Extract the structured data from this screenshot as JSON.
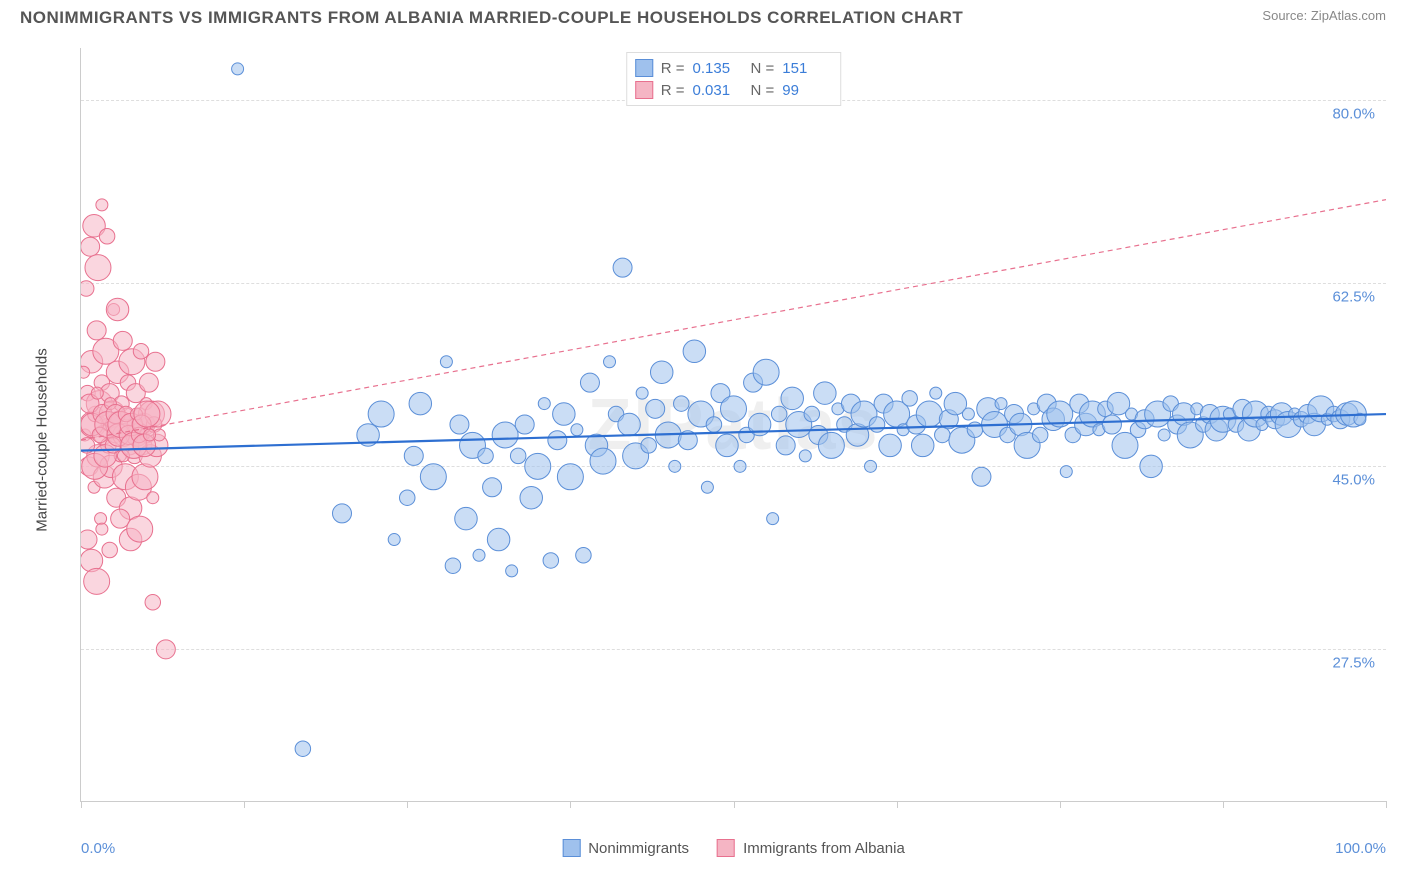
{
  "title": "NONIMMIGRANTS VS IMMIGRANTS FROM ALBANIA MARRIED-COUPLE HOUSEHOLDS CORRELATION CHART",
  "source_label": "Source:",
  "source_name": "ZipAtlas.com",
  "watermark": "ZIPatlas",
  "ylabel": "Married-couple Households",
  "chart": {
    "type": "scatter",
    "xlim": [
      0,
      100
    ],
    "ylim": [
      13,
      85
    ],
    "x_ticks": [
      0,
      12.5,
      25,
      37.5,
      50,
      62.5,
      75,
      87.5,
      100
    ],
    "x_tick_labels_shown": {
      "0": "0.0%",
      "100": "100.0%"
    },
    "y_gridlines": [
      27.5,
      45.0,
      62.5,
      80.0
    ],
    "y_tick_labels": [
      "27.5%",
      "45.0%",
      "62.5%",
      "80.0%"
    ],
    "background_color": "#ffffff",
    "grid_color": "#dedede",
    "axis_color": "#cccccc",
    "tick_label_color": "#5b8fd8",
    "series": [
      {
        "name": "Nonimmigrants",
        "fill_color": "#9fc1ed",
        "stroke_color": "#5b8fd8",
        "fill_opacity": 0.55,
        "marker_stroke_width": 1,
        "R": "0.135",
        "N": "151",
        "trend": {
          "x1": 0,
          "y1": 46.5,
          "x2": 100,
          "y2": 50.0,
          "stroke": "#2e6fd1",
          "width": 2.2,
          "dash": "none"
        },
        "points": [
          [
            12,
            83
          ],
          [
            17,
            18
          ],
          [
            20,
            40.5
          ],
          [
            22,
            48
          ],
          [
            23,
            50
          ],
          [
            24,
            38
          ],
          [
            25,
            42
          ],
          [
            25.5,
            46
          ],
          [
            26,
            51
          ],
          [
            27,
            44
          ],
          [
            28,
            55
          ],
          [
            28.5,
            35.5
          ],
          [
            29,
            49
          ],
          [
            29.5,
            40
          ],
          [
            30,
            47
          ],
          [
            30.5,
            36.5
          ],
          [
            31,
            46
          ],
          [
            31.5,
            43
          ],
          [
            32,
            38
          ],
          [
            32.5,
            48
          ],
          [
            33,
            35
          ],
          [
            33.5,
            46
          ],
          [
            34,
            49
          ],
          [
            34.5,
            42
          ],
          [
            35,
            45
          ],
          [
            35.5,
            51
          ],
          [
            36,
            36
          ],
          [
            36.5,
            47.5
          ],
          [
            37,
            50
          ],
          [
            37.5,
            44
          ],
          [
            38,
            48.5
          ],
          [
            38.5,
            36.5
          ],
          [
            39,
            53
          ],
          [
            39.5,
            47
          ],
          [
            40,
            45.5
          ],
          [
            40.5,
            55
          ],
          [
            41,
            50
          ],
          [
            41.5,
            64
          ],
          [
            42,
            49
          ],
          [
            42.5,
            46
          ],
          [
            43,
            52
          ],
          [
            43.5,
            47
          ],
          [
            44,
            50.5
          ],
          [
            44.5,
            54
          ],
          [
            45,
            48
          ],
          [
            45.5,
            45
          ],
          [
            46,
            51
          ],
          [
            46.5,
            47.5
          ],
          [
            47,
            56
          ],
          [
            47.5,
            50
          ],
          [
            48,
            43
          ],
          [
            48.5,
            49
          ],
          [
            49,
            52
          ],
          [
            49.5,
            47
          ],
          [
            50,
            50.5
          ],
          [
            50.5,
            45
          ],
          [
            51,
            48
          ],
          [
            51.5,
            53
          ],
          [
            52,
            49
          ],
          [
            52.5,
            54
          ],
          [
            53,
            40
          ],
          [
            53.5,
            50
          ],
          [
            54,
            47
          ],
          [
            54.5,
            51.5
          ],
          [
            55,
            49
          ],
          [
            55.5,
            46
          ],
          [
            56,
            50
          ],
          [
            56.5,
            48
          ],
          [
            57,
            52
          ],
          [
            57.5,
            47
          ],
          [
            58,
            50.5
          ],
          [
            58.5,
            49
          ],
          [
            59,
            51
          ],
          [
            59.5,
            48
          ],
          [
            60,
            50
          ],
          [
            60.5,
            45
          ],
          [
            61,
            49
          ],
          [
            61.5,
            51
          ],
          [
            62,
            47
          ],
          [
            62.5,
            50
          ],
          [
            63,
            48.5
          ],
          [
            63.5,
            51.5
          ],
          [
            64,
            49
          ],
          [
            64.5,
            47
          ],
          [
            65,
            50
          ],
          [
            65.5,
            52
          ],
          [
            66,
            48
          ],
          [
            66.5,
            49.5
          ],
          [
            67,
            51
          ],
          [
            67.5,
            47.5
          ],
          [
            68,
            50
          ],
          [
            68.5,
            48.5
          ],
          [
            69,
            44
          ],
          [
            69.5,
            50.5
          ],
          [
            70,
            49
          ],
          [
            70.5,
            51
          ],
          [
            71,
            48
          ],
          [
            71.5,
            50
          ],
          [
            72,
            49
          ],
          [
            72.5,
            47
          ],
          [
            73,
            50.5
          ],
          [
            73.5,
            48
          ],
          [
            74,
            51
          ],
          [
            74.5,
            49.5
          ],
          [
            75,
            50
          ],
          [
            75.5,
            44.5
          ],
          [
            76,
            48
          ],
          [
            76.5,
            51
          ],
          [
            77,
            49
          ],
          [
            77.5,
            50
          ],
          [
            78,
            48.5
          ],
          [
            78.5,
            50.5
          ],
          [
            79,
            49
          ],
          [
            79.5,
            51
          ],
          [
            80,
            47
          ],
          [
            80.5,
            50
          ],
          [
            81,
            48.5
          ],
          [
            81.5,
            49.5
          ],
          [
            82,
            45
          ],
          [
            82.5,
            50
          ],
          [
            83,
            48
          ],
          [
            83.5,
            51
          ],
          [
            84,
            49
          ],
          [
            84.5,
            50
          ],
          [
            85,
            48
          ],
          [
            85.5,
            50.5
          ],
          [
            86,
            49
          ],
          [
            86.5,
            50
          ],
          [
            87,
            48.5
          ],
          [
            87.5,
            49.5
          ],
          [
            88,
            50
          ],
          [
            88.5,
            49
          ],
          [
            89,
            50.5
          ],
          [
            89.5,
            48.5
          ],
          [
            90,
            50
          ],
          [
            90.5,
            49
          ],
          [
            91,
            50
          ],
          [
            91.5,
            49.5
          ],
          [
            92,
            50
          ],
          [
            92.5,
            49
          ],
          [
            93,
            50
          ],
          [
            93.5,
            49.5
          ],
          [
            94,
            50
          ],
          [
            94.5,
            49
          ],
          [
            95,
            50.5
          ],
          [
            95.5,
            49.5
          ],
          [
            96,
            50
          ],
          [
            96.5,
            49.5
          ],
          [
            97,
            50
          ],
          [
            97.5,
            50
          ],
          [
            98,
            49.5
          ]
        ]
      },
      {
        "name": "Immigrants from Albania",
        "fill_color": "#f5b5c4",
        "stroke_color": "#e8718f",
        "fill_opacity": 0.55,
        "marker_stroke_width": 1,
        "R": "0.031",
        "N": "99",
        "trend": {
          "x1": 0,
          "y1": 47.5,
          "x2": 100,
          "y2": 70.5,
          "stroke": "#e8718f",
          "width": 1.2,
          "dash": "5,4"
        },
        "points": [
          [
            0.3,
            48
          ],
          [
            0.5,
            52
          ],
          [
            0.6,
            45
          ],
          [
            0.8,
            55
          ],
          [
            0.9,
            49
          ],
          [
            1.0,
            43
          ],
          [
            1.1,
            50
          ],
          [
            1.2,
            58
          ],
          [
            1.3,
            46
          ],
          [
            1.4,
            51
          ],
          [
            1.5,
            40
          ],
          [
            1.6,
            53
          ],
          [
            1.7,
            48
          ],
          [
            1.8,
            44
          ],
          [
            1.9,
            56
          ],
          [
            2.0,
            49
          ],
          [
            2.1,
            47
          ],
          [
            2.2,
            52
          ],
          [
            2.3,
            45
          ],
          [
            2.4,
            50
          ],
          [
            2.5,
            60
          ],
          [
            2.6,
            48
          ],
          [
            2.7,
            42
          ],
          [
            2.8,
            54
          ],
          [
            2.9,
            49
          ],
          [
            3.0,
            46
          ],
          [
            3.1,
            51
          ],
          [
            3.2,
            57
          ],
          [
            3.3,
            48
          ],
          [
            3.4,
            44
          ],
          [
            3.5,
            50
          ],
          [
            3.6,
            53
          ],
          [
            3.7,
            47
          ],
          [
            3.8,
            41
          ],
          [
            3.9,
            55
          ],
          [
            4.0,
            49
          ],
          [
            4.1,
            46
          ],
          [
            4.2,
            52
          ],
          [
            4.3,
            48
          ],
          [
            4.4,
            43
          ],
          [
            4.5,
            50
          ],
          [
            4.6,
            56
          ],
          [
            4.7,
            47
          ],
          [
            4.8,
            49
          ],
          [
            4.9,
            44
          ],
          [
            5.0,
            51
          ],
          [
            5.1,
            48
          ],
          [
            5.2,
            53
          ],
          [
            5.3,
            46
          ],
          [
            5.4,
            50
          ],
          [
            5.5,
            42
          ],
          [
            5.6,
            49
          ],
          [
            5.7,
            55
          ],
          [
            5.8,
            47
          ],
          [
            5.9,
            50
          ],
          [
            6.0,
            48
          ],
          [
            0.4,
            62
          ],
          [
            0.7,
            66
          ],
          [
            1.0,
            68
          ],
          [
            1.3,
            64
          ],
          [
            1.6,
            70
          ],
          [
            2.0,
            67
          ],
          [
            0.5,
            38
          ],
          [
            0.8,
            36
          ],
          [
            1.2,
            34
          ],
          [
            1.6,
            39
          ],
          [
            2.2,
            37
          ],
          [
            3.0,
            40
          ],
          [
            3.8,
            38
          ],
          [
            4.5,
            39
          ],
          [
            0.2,
            54
          ],
          [
            0.45,
            47
          ],
          [
            0.65,
            51
          ],
          [
            0.85,
            49
          ],
          [
            1.05,
            45
          ],
          [
            1.25,
            52
          ],
          [
            1.45,
            48
          ],
          [
            1.65,
            50
          ],
          [
            1.85,
            46
          ],
          [
            2.05,
            49
          ],
          [
            2.25,
            51
          ],
          [
            2.45,
            47
          ],
          [
            2.65,
            50
          ],
          [
            2.85,
            48
          ],
          [
            3.05,
            49
          ],
          [
            3.25,
            46
          ],
          [
            3.45,
            50
          ],
          [
            3.65,
            48
          ],
          [
            3.85,
            49
          ],
          [
            4.05,
            47
          ],
          [
            4.25,
            50
          ],
          [
            4.45,
            48
          ],
          [
            4.65,
            49
          ],
          [
            4.85,
            47
          ],
          [
            5.05,
            50
          ],
          [
            5.25,
            48
          ],
          [
            5.5,
            32
          ],
          [
            6.5,
            27.5
          ],
          [
            2.8,
            60
          ]
        ]
      }
    ],
    "marker_radius_min": 6,
    "marker_radius_max": 13
  }
}
